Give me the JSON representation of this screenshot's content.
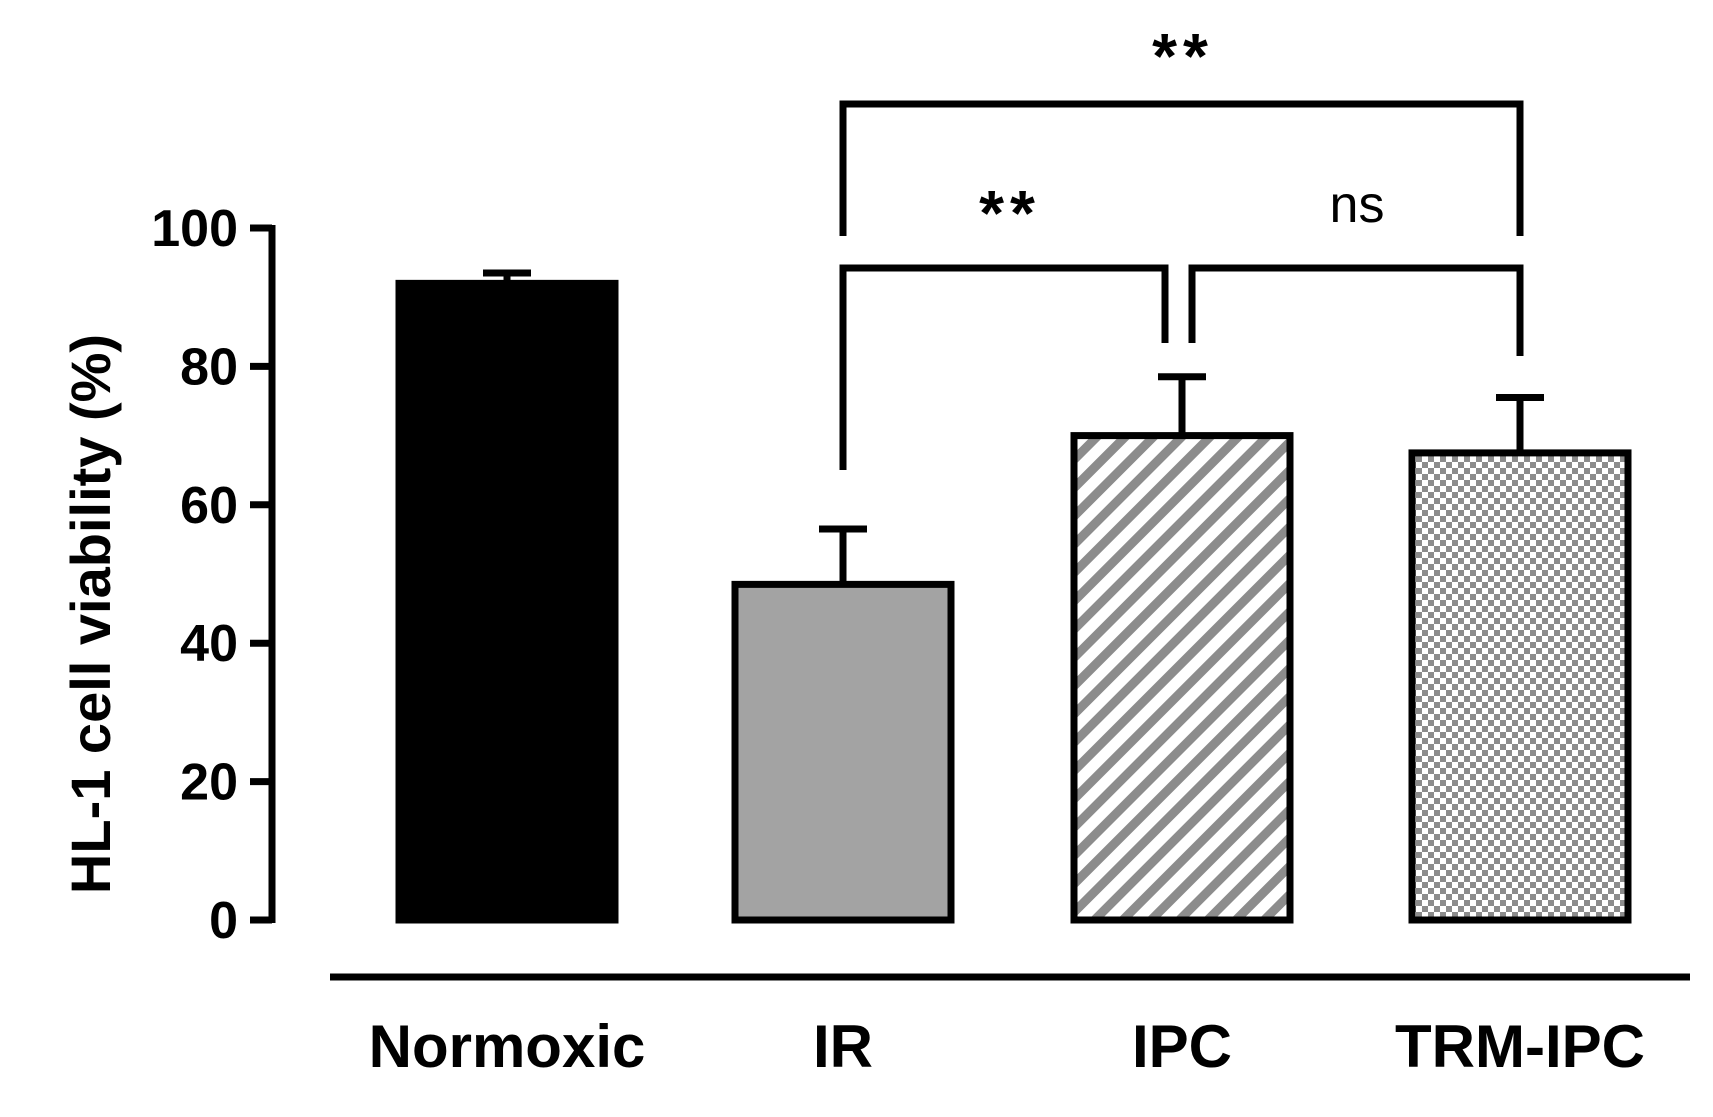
{
  "chart_data": {
    "type": "bar",
    "title": "",
    "xlabel": "",
    "ylabel": "HL-1 cell viability (%)",
    "ylim": [
      0,
      100
    ],
    "yticks": [
      0,
      20,
      40,
      60,
      80,
      100
    ],
    "grid": false,
    "categories": [
      "Normoxic",
      "IR",
      "IPC",
      "TRM-IPC"
    ],
    "values": [
      92,
      48.5,
      70,
      67.5
    ],
    "errors": [
      1.5,
      8,
      8.5,
      8
    ],
    "bar_fills": [
      "solid-black",
      "solid-gray",
      "diagonal-stripes",
      "checkerboard"
    ],
    "colors": {
      "normoxic": "#000000",
      "ir": "#a3a3a3",
      "pattern": "#8c8c8c",
      "outline": "#000000"
    },
    "significance": [
      {
        "from": "IR",
        "to": "IPC",
        "label": "**"
      },
      {
        "from": "IPC",
        "to": "TRM-IPC",
        "label": "ns"
      },
      {
        "from": "IR",
        "to": "TRM-IPC",
        "label": "**"
      }
    ]
  }
}
